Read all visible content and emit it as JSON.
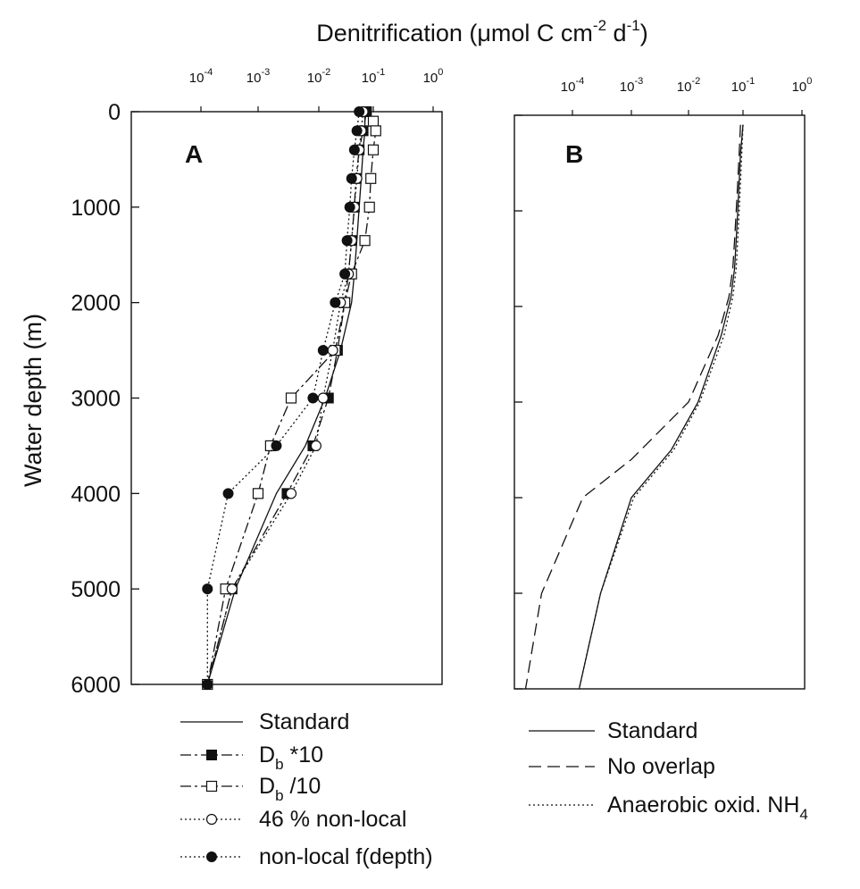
{
  "figure_title": {
    "main": "Denitrification (μmol C cm",
    "exp1": "-2",
    "mid": " d",
    "exp2": "-1",
    "close": ")"
  },
  "chart_data": [
    {
      "type": "line",
      "panel_label": "A",
      "x_scale": "log",
      "xlim": [
        1e-05,
        1
      ],
      "x_ticks": [
        {
          "base": "10",
          "exp": "-4"
        },
        {
          "base": "10",
          "exp": "-3"
        },
        {
          "base": "10",
          "exp": "-2"
        },
        {
          "base": "10",
          "exp": "-1"
        },
        {
          "base": "10",
          "exp": "0"
        }
      ],
      "x_tick_values": [
        0.0001,
        0.001,
        0.01,
        0.1,
        1
      ],
      "ylabel": "Water depth (m)",
      "ylim": [
        0,
        6000
      ],
      "y_inverted": true,
      "y_ticks": [
        "0",
        "1000",
        "2000",
        "3000",
        "4000",
        "5000",
        "6000"
      ],
      "y_tick_values": [
        0,
        1000,
        2000,
        3000,
        4000,
        5000,
        6000
      ],
      "series": [
        {
          "name": "Standard",
          "style": "solid",
          "marker": "none",
          "points": [
            [
              0.07,
              0
            ],
            [
              0.07,
              200
            ],
            [
              0.065,
              400
            ],
            [
              0.06,
              700
            ],
            [
              0.055,
              1000
            ],
            [
              0.05,
              1350
            ],
            [
              0.045,
              1700
            ],
            [
              0.04,
              2000
            ],
            [
              0.025,
              2500
            ],
            [
              0.013,
              3000
            ],
            [
              0.006,
              3500
            ],
            [
              0.002,
              4000
            ],
            [
              0.0004,
              5000
            ],
            [
              0.00013,
              6000
            ]
          ]
        },
        {
          "name": "D_b *10",
          "style": "dashdot",
          "marker": "filled-square",
          "points": [
            [
              0.075,
              0
            ],
            [
              0.065,
              200
            ],
            [
              0.055,
              400
            ],
            [
              0.048,
              700
            ],
            [
              0.045,
              1000
            ],
            [
              0.04,
              1350
            ],
            [
              0.035,
              1700
            ],
            [
              0.03,
              2000
            ],
            [
              0.022,
              2500
            ],
            [
              0.015,
              3000
            ],
            [
              0.008,
              3500
            ],
            [
              0.003,
              4000
            ],
            [
              0.00035,
              5000
            ],
            [
              0.00013,
              6000
            ]
          ]
        },
        {
          "name": "D_b /10",
          "style": "dashdot",
          "marker": "open-square",
          "points": [
            [
              0.1,
              100
            ],
            [
              0.11,
              200
            ],
            [
              0.1,
              400
            ],
            [
              0.09,
              700
            ],
            [
              0.085,
              1000
            ],
            [
              0.07,
              1350
            ],
            [
              0.04,
              1700
            ],
            [
              0.03,
              2000
            ],
            [
              0.02,
              2500
            ],
            [
              0.0035,
              3000
            ],
            [
              0.0016,
              3500
            ],
            [
              0.001,
              4000
            ],
            [
              0.00027,
              5000
            ],
            [
              0.00013,
              6000
            ]
          ]
        },
        {
          "name": "46 % non-local",
          "style": "dotted",
          "marker": "open-circle",
          "points": [
            [
              0.065,
              0
            ],
            [
              0.06,
              200
            ],
            [
              0.055,
              400
            ],
            [
              0.05,
              700
            ],
            [
              0.045,
              1000
            ],
            [
              0.04,
              1350
            ],
            [
              0.035,
              1700
            ],
            [
              0.025,
              2000
            ],
            [
              0.018,
              2500
            ],
            [
              0.012,
              3000
            ],
            [
              0.009,
              3500
            ],
            [
              0.0035,
              4000
            ],
            [
              0.00035,
              5000
            ],
            [
              0.00013,
              6000
            ]
          ]
        },
        {
          "name": "non-local f(depth)",
          "style": "dotted",
          "marker": "filled-circle",
          "points": [
            [
              0.055,
              0
            ],
            [
              0.05,
              200
            ],
            [
              0.045,
              400
            ],
            [
              0.04,
              700
            ],
            [
              0.037,
              1000
            ],
            [
              0.033,
              1350
            ],
            [
              0.03,
              1700
            ],
            [
              0.02,
              2000
            ],
            [
              0.012,
              2500
            ],
            [
              0.008,
              3000
            ],
            [
              0.002,
              3500
            ],
            [
              0.0003,
              4000
            ],
            [
              0.00013,
              5000
            ],
            [
              0.00013,
              6000
            ]
          ]
        }
      ]
    },
    {
      "type": "line",
      "panel_label": "B",
      "x_scale": "log",
      "xlim": [
        1e-05,
        1
      ],
      "x_ticks": [
        {
          "base": "10",
          "exp": "-4"
        },
        {
          "base": "10",
          "exp": "-3"
        },
        {
          "base": "10",
          "exp": "-2"
        },
        {
          "base": "10",
          "exp": "-1"
        },
        {
          "base": "10",
          "exp": "0"
        }
      ],
      "x_tick_values": [
        0.0001,
        0.001,
        0.01,
        0.1,
        1
      ],
      "ylim": [
        0,
        6000
      ],
      "y_inverted": true,
      "y_tick_values": [
        0,
        1000,
        2000,
        3000,
        4000,
        5000,
        6000
      ],
      "series": [
        {
          "name": "Standard",
          "style": "solid",
          "points": [
            [
              0.1,
              100
            ],
            [
              0.09,
              400
            ],
            [
              0.085,
              700
            ],
            [
              0.08,
              1000
            ],
            [
              0.075,
              1300
            ],
            [
              0.07,
              1600
            ],
            [
              0.06,
              1900
            ],
            [
              0.04,
              2300
            ],
            [
              0.015,
              3000
            ],
            [
              0.005,
              3500
            ],
            [
              0.001,
              4000
            ],
            [
              0.0003,
              5000
            ],
            [
              0.00013,
              6000
            ]
          ]
        },
        {
          "name": "No overlap",
          "style": "dashed",
          "points": [
            [
              0.09,
              100
            ],
            [
              0.085,
              400
            ],
            [
              0.08,
              700
            ],
            [
              0.075,
              1000
            ],
            [
              0.07,
              1300
            ],
            [
              0.065,
              1600
            ],
            [
              0.055,
              1900
            ],
            [
              0.035,
              2300
            ],
            [
              0.01,
              3000
            ],
            [
              0.001,
              3600
            ],
            [
              0.00015,
              4000
            ],
            [
              3e-05,
              5000
            ],
            [
              1.6e-05,
              6000
            ]
          ]
        },
        {
          "name": "Anaerobic oxid. NH",
          "name_sub": "4",
          "style": "dotted",
          "points": [
            [
              0.1,
              100
            ],
            [
              0.095,
              400
            ],
            [
              0.09,
              700
            ],
            [
              0.085,
              1000
            ],
            [
              0.08,
              1300
            ],
            [
              0.075,
              1600
            ],
            [
              0.065,
              1900
            ],
            [
              0.045,
              2300
            ],
            [
              0.016,
              3000
            ],
            [
              0.0055,
              3500
            ],
            [
              0.0011,
              4000
            ],
            [
              0.0003,
              5000
            ],
            [
              0.00013,
              6000
            ]
          ]
        }
      ]
    }
  ],
  "legend_a": [
    {
      "label": "Standard"
    },
    {
      "label": "D",
      "sub": "b",
      "suffix": " *10"
    },
    {
      "label": "D",
      "sub": "b",
      "suffix": " /10"
    },
    {
      "label": "46 % non-local"
    },
    {
      "label": "non-local f(depth)"
    }
  ],
  "legend_b": [
    {
      "label": "Standard"
    },
    {
      "label": "No overlap"
    },
    {
      "label": "Anaerobic oxid. NH",
      "sub": "4"
    }
  ]
}
